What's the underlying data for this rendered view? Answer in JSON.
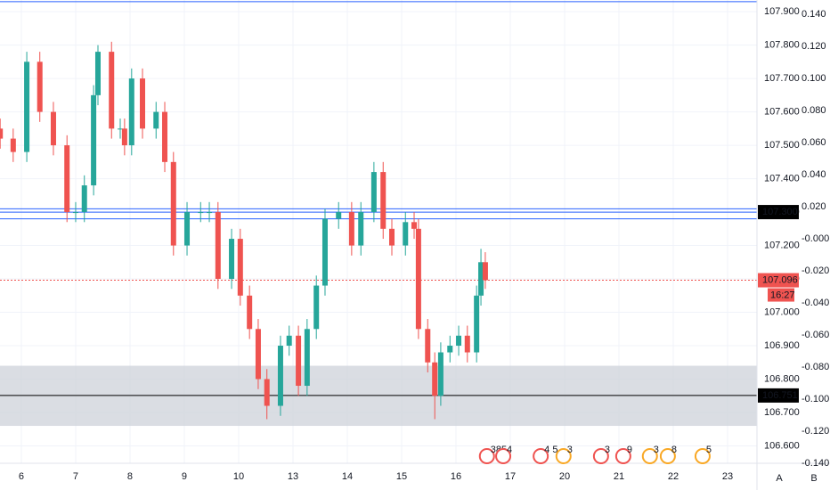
{
  "chart_data": {
    "type": "candlestick",
    "x": [
      -0.39,
      -0.15,
      0.1,
      0.34,
      0.59,
      0.84,
      1.0,
      1.16,
      1.33,
      1.41,
      1.66,
      1.82,
      1.9,
      2.03,
      2.23,
      2.48,
      2.64,
      2.8,
      3.05,
      3.3,
      3.46,
      3.62,
      3.87,
      4.03,
      4.2,
      4.36,
      4.52,
      4.77,
      4.93,
      5.1,
      5.26,
      5.43,
      5.59,
      5.84,
      6.08,
      6.25,
      6.49,
      6.66,
      6.82,
      7.07,
      7.23,
      7.31,
      7.48,
      7.61,
      7.72,
      7.89,
      8.05,
      8.21,
      8.38,
      8.46,
      8.54
    ],
    "open": [
      107.55,
      107.52,
      107.48,
      107.75,
      107.6,
      107.5,
      107.3,
      107.3,
      107.38,
      107.65,
      107.78,
      107.55,
      107.55,
      107.5,
      107.7,
      107.55,
      107.6,
      107.45,
      107.2,
      107.3,
      107.3,
      107.3,
      107.1,
      107.22,
      107.05,
      106.95,
      106.8,
      106.72,
      106.9,
      106.93,
      106.78,
      106.95,
      107.08,
      107.28,
      107.3,
      107.2,
      107.3,
      107.42,
      107.25,
      107.2,
      107.27,
      107.25,
      106.95,
      106.85,
      106.75,
      106.88,
      106.9,
      106.93,
      106.88,
      107.05,
      107.15
    ],
    "high": [
      107.58,
      107.55,
      107.78,
      107.78,
      107.63,
      107.53,
      107.33,
      107.41,
      107.68,
      107.8,
      107.81,
      107.58,
      107.58,
      107.73,
      107.73,
      107.63,
      107.63,
      107.48,
      107.33,
      107.33,
      107.33,
      107.33,
      107.25,
      107.25,
      107.08,
      106.98,
      106.83,
      106.93,
      106.96,
      106.96,
      106.98,
      107.11,
      107.31,
      107.33,
      107.33,
      107.33,
      107.45,
      107.45,
      107.28,
      107.3,
      107.3,
      107.28,
      106.98,
      106.88,
      106.91,
      106.93,
      106.96,
      106.96,
      107.08,
      107.19,
      107.18
    ],
    "low": [
      107.49,
      107.45,
      107.45,
      107.57,
      107.47,
      107.27,
      107.27,
      107.27,
      107.35,
      107.62,
      107.52,
      107.52,
      107.47,
      107.47,
      107.52,
      107.52,
      107.42,
      107.17,
      107.17,
      107.27,
      107.27,
      107.07,
      107.07,
      107.02,
      106.92,
      106.77,
      106.68,
      106.69,
      106.87,
      106.75,
      106.75,
      106.92,
      107.05,
      107.25,
      107.17,
      107.17,
      107.27,
      107.22,
      107.17,
      107.17,
      107.22,
      106.92,
      106.82,
      106.68,
      106.72,
      106.85,
      106.87,
      106.85,
      106.85,
      107.02,
      107.07
    ],
    "close": [
      107.52,
      107.48,
      107.75,
      107.6,
      107.5,
      107.3,
      107.3,
      107.38,
      107.65,
      107.78,
      107.55,
      107.55,
      107.5,
      107.7,
      107.55,
      107.6,
      107.45,
      107.2,
      107.3,
      107.3,
      107.3,
      107.1,
      107.22,
      107.05,
      106.95,
      106.8,
      106.72,
      106.9,
      106.93,
      106.78,
      106.95,
      107.08,
      107.28,
      107.3,
      107.2,
      107.3,
      107.42,
      107.25,
      107.2,
      107.27,
      107.25,
      106.95,
      106.85,
      106.75,
      106.88,
      106.9,
      106.93,
      106.88,
      107.05,
      107.15,
      107.096
    ],
    "up_color": "#26a69a",
    "down_color": "#ef5350",
    "xlim": [
      -0.393,
      13.541
    ],
    "xticks": [
      {
        "value": 0,
        "label": "6"
      },
      {
        "value": 1,
        "label": "7"
      },
      {
        "value": 2,
        "label": "8"
      },
      {
        "value": 3,
        "label": "9"
      },
      {
        "value": 4,
        "label": "10"
      },
      {
        "value": 5,
        "label": "13"
      },
      {
        "value": 6,
        "label": "14"
      },
      {
        "value": 7,
        "label": "15"
      },
      {
        "value": 8,
        "label": "16"
      },
      {
        "value": 9,
        "label": "17"
      },
      {
        "value": 10,
        "label": "20"
      },
      {
        "value": 11,
        "label": "21"
      },
      {
        "value": 12,
        "label": "22"
      },
      {
        "value": 13,
        "label": "23"
      }
    ],
    "ylim": [
      106.548,
      107.935
    ],
    "yticks": [
      {
        "value": 107.9,
        "label": "107.900"
      },
      {
        "value": 107.8,
        "label": "107.800"
      },
      {
        "value": 107.7,
        "label": "107.700"
      },
      {
        "value": 107.6,
        "label": "107.600"
      },
      {
        "value": 107.5,
        "label": "107.500"
      },
      {
        "value": 107.4,
        "label": "107.400"
      },
      {
        "value": 107.3,
        "label": "107.300"
      },
      {
        "value": 107.2,
        "label": "107.200"
      },
      {
        "value": 107.1,
        "label": "107.100"
      },
      {
        "value": 107.0,
        "label": "107.000"
      },
      {
        "value": 106.9,
        "label": "106.900"
      },
      {
        "value": 106.8,
        "label": "106.800"
      },
      {
        "value": 106.7,
        "label": "106.700"
      },
      {
        "value": 106.6,
        "label": "106.600"
      }
    ],
    "y2lim": [
      -0.14,
      0.149
    ],
    "y2ticks": [
      {
        "value": 0.14,
        "label": "0.140"
      },
      {
        "value": 0.12,
        "label": "0.120"
      },
      {
        "value": 0.1,
        "label": "0.100"
      },
      {
        "value": 0.08,
        "label": "0.080"
      },
      {
        "value": 0.06,
        "label": "0.060"
      },
      {
        "value": 0.04,
        "label": "0.040"
      },
      {
        "value": 0.02,
        "label": "0.020"
      },
      {
        "value": 0,
        "label": "-0.000"
      },
      {
        "value": -0.02,
        "label": "-0.020"
      },
      {
        "value": -0.04,
        "label": "-0.040"
      },
      {
        "value": -0.06,
        "label": "-0.060"
      },
      {
        "value": -0.08,
        "label": "-0.080"
      },
      {
        "value": -0.1,
        "label": "-0.100"
      },
      {
        "value": -0.12,
        "label": "-0.120"
      },
      {
        "value": -0.14,
        "label": "-0.140"
      }
    ],
    "grid": true,
    "zone": {
      "from": 106.66,
      "to": 106.84,
      "color": "#d1d4dc"
    },
    "hlines": [
      {
        "value": 107.93,
        "color": "#2962ff",
        "style": "solid"
      },
      {
        "value": 107.31,
        "color": "#2962ff",
        "style": "solid"
      },
      {
        "value": 107.3,
        "color": "#2962ff",
        "style": "solid"
      },
      {
        "value": 107.28,
        "color": "#2962ff",
        "style": "solid"
      },
      {
        "value": 106.751,
        "color": "#000000",
        "style": "solid"
      },
      {
        "value": 107.096,
        "color": "#ef5350",
        "style": "dotted"
      }
    ],
    "price_labels": [
      {
        "value": 107.3,
        "label": "107.300",
        "color": "#000000"
      },
      {
        "value": 107.096,
        "label": "107.096",
        "color": "#ef5350"
      },
      {
        "value": 106.751,
        "label": "106.751",
        "color": "#000000"
      }
    ],
    "countdown": "16:27",
    "events": [
      {
        "x": 8.57,
        "label": "385",
        "color": "#ef5350"
      },
      {
        "x": 8.87,
        "label": "4",
        "color": "#ef5350"
      },
      {
        "x": 9.56,
        "label": "4 5",
        "color": "#ef5350"
      },
      {
        "x": 9.98,
        "label": "3",
        "color": "#f9a825"
      },
      {
        "x": 10.67,
        "label": "3",
        "color": "#ef5350"
      },
      {
        "x": 11.08,
        "label": "9",
        "color": "#ef5350"
      },
      {
        "x": 11.57,
        "label": "3",
        "color": "#f9a825"
      },
      {
        "x": 11.9,
        "label": "8",
        "color": "#f9a825"
      },
      {
        "x": 12.54,
        "label": "5",
        "color": "#f9a825"
      }
    ],
    "buttons": [
      "A",
      "B"
    ]
  }
}
